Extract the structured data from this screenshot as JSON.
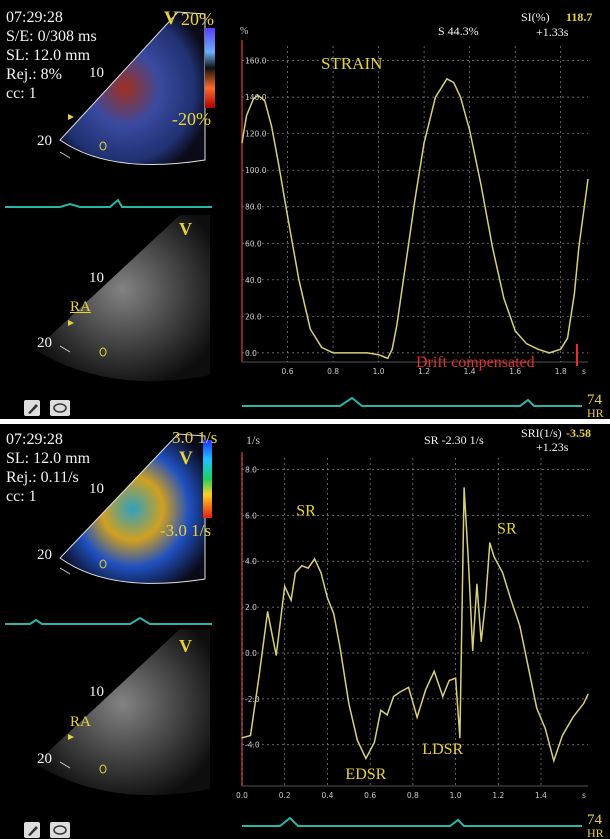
{
  "top": {
    "info": {
      "time": "07:29:28",
      "se": "S/E: 0/308 ms",
      "sl": "SL: 12.0 mm",
      "rej": "Rej.: 8%",
      "cc": "cc: 1"
    },
    "color_scale": {
      "max": "20%",
      "min": "-20%",
      "v_mark": "V"
    },
    "depth": {
      "d10": "10",
      "d20": "20",
      "b10": "10",
      "b20": "20"
    },
    "bmode": {
      "v_mark": "V",
      "ra": "RA"
    },
    "readout": {
      "s_value": "S 44.3%",
      "si_label": "SI(%)",
      "si_value": "118.7",
      "si_time": "+1.33s"
    },
    "hr": {
      "value": "74",
      "unit": "HR"
    },
    "drift": "Drift compensated",
    "icons": [
      "pencil-icon",
      "ellipse-icon"
    ]
  },
  "bottom": {
    "info": {
      "time": "07:29:28",
      "sl": "SL: 12.0 mm",
      "rej": "Rej.: 0.11/s",
      "cc": "cc: 1"
    },
    "color_scale": {
      "max": "3.0 1/s",
      "min": "-3.0 1/s",
      "v_mark": "V"
    },
    "depth": {
      "d10": "10",
      "d20": "20",
      "b10": "10",
      "b20": "20"
    },
    "bmode": {
      "v_mark": "V",
      "ra": "RA"
    },
    "readout": {
      "sr_value": "SR -2.30 1/s",
      "sri_label": "SRI(1/s)",
      "sri_value": "-3.58",
      "sri_time": "+1.23s"
    },
    "hr": {
      "value": "74",
      "unit": "HR"
    },
    "icons": [
      "pencil-icon",
      "ellipse-icon"
    ]
  },
  "chart_data": [
    {
      "type": "line",
      "title": "STRAIN",
      "ylabel": "%",
      "xlabel": "s",
      "xlim": [
        0.4,
        1.92
      ],
      "ylim": [
        -5,
        168
      ],
      "xticks": [
        "0.6",
        "0.8",
        "1.0",
        "1.2",
        "1.4",
        "1.6",
        "1.8",
        "s"
      ],
      "yticks": [
        "160.0",
        "140.0",
        "120.0",
        "100.0",
        "80.0",
        "60.0",
        "40.0",
        "20.0",
        "0.0"
      ],
      "grid": true,
      "color": "#d8cf7a",
      "series": [
        {
          "x": [
            0.4,
            0.42,
            0.45,
            0.47,
            0.5,
            0.53,
            0.56,
            0.6,
            0.65,
            0.7,
            0.75,
            0.8,
            0.85,
            0.9,
            0.95,
            1.0,
            1.02,
            1.04,
            1.06,
            1.08,
            1.1,
            1.13,
            1.16,
            1.2,
            1.25,
            1.3,
            1.33,
            1.36,
            1.4,
            1.45,
            1.5,
            1.55,
            1.6,
            1.65,
            1.7,
            1.75,
            1.8,
            1.83,
            1.86,
            1.88,
            1.92
          ],
          "y": [
            115,
            130,
            139,
            141,
            138,
            124,
            104,
            75,
            40,
            13,
            3,
            0,
            0,
            0,
            0,
            -1,
            -2,
            -3,
            2,
            15,
            32,
            58,
            84,
            115,
            140,
            150,
            148,
            140,
            122,
            92,
            58,
            30,
            12,
            5,
            2,
            0,
            2,
            8,
            32,
            58,
            95
          ]
        }
      ],
      "annotations": [
        {
          "text": "STRAIN",
          "x": 1.08,
          "y": 145
        }
      ]
    },
    {
      "type": "line",
      "title": "",
      "ylabel": "1/s",
      "xlabel": "s",
      "xlim": [
        0.0,
        1.62
      ],
      "ylim": [
        -5.8,
        8.5
      ],
      "xticks": [
        "0.0",
        "0.2",
        "0.4",
        "0.6",
        "0.8",
        "1.0",
        "1.2",
        "1.4",
        "s"
      ],
      "yticks": [
        "8.0",
        "6.0",
        "4.0",
        "2.0",
        "0.0",
        "-2.0",
        "-4.0"
      ],
      "grid": true,
      "color": "#d8cf7a",
      "series": [
        {
          "x": [
            0.0,
            0.04,
            0.08,
            0.12,
            0.16,
            0.2,
            0.23,
            0.25,
            0.28,
            0.31,
            0.34,
            0.37,
            0.4,
            0.43,
            0.46,
            0.5,
            0.54,
            0.58,
            0.62,
            0.65,
            0.68,
            0.71,
            0.74,
            0.78,
            0.82,
            0.86,
            0.9,
            0.94,
            0.97,
            1.0,
            1.02,
            1.04,
            1.06,
            1.08,
            1.1,
            1.12,
            1.14,
            1.16,
            1.18,
            1.22,
            1.26,
            1.3,
            1.34,
            1.38,
            1.42,
            1.46,
            1.5,
            1.55,
            1.6,
            1.62
          ],
          "y": [
            -3.7,
            -3.6,
            -1.0,
            1.8,
            -0.1,
            2.9,
            2.3,
            3.5,
            3.8,
            3.7,
            4.1,
            3.5,
            2.4,
            1.7,
            0.2,
            -2.2,
            -3.8,
            -4.6,
            -3.9,
            -2.5,
            -2.7,
            -1.9,
            -1.7,
            -1.5,
            -2.8,
            -1.6,
            -0.8,
            -1.9,
            -1.2,
            -1.1,
            -3.7,
            7.2,
            4.0,
            0.1,
            3.0,
            0.5,
            2.2,
            4.8,
            4.2,
            3.5,
            2.3,
            1.2,
            -0.6,
            -2.4,
            -3.3,
            -4.7,
            -3.6,
            -2.8,
            -2.2,
            -1.8
          ]
        }
      ],
      "annotations": [
        {
          "text": "SR",
          "x": 0.3,
          "y": 6.0
        },
        {
          "text": "EDSR",
          "x": 0.58,
          "y": -5.5
        },
        {
          "text": "LDSR",
          "x": 0.94,
          "y": -4.4
        },
        {
          "text": "SR",
          "x": 1.24,
          "y": 5.2
        }
      ]
    }
  ]
}
